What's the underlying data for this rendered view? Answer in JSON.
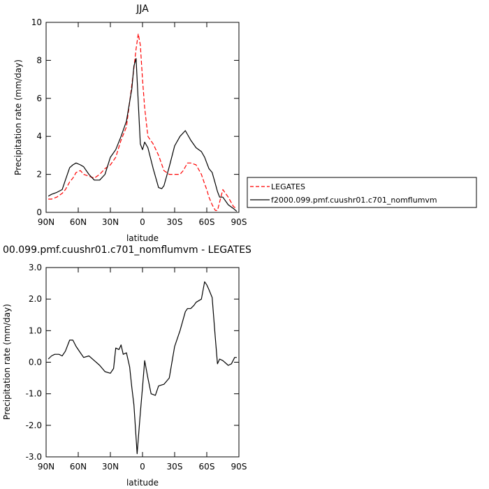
{
  "chart_data": [
    {
      "type": "line",
      "title": "JJA",
      "xlabel": "latitude",
      "ylabel": "Precipitation rate (mm/day)",
      "xlim": [
        90,
        -90
      ],
      "ylim": [
        0,
        10
      ],
      "xticks": [
        {
          "value": 90,
          "label": "90N"
        },
        {
          "value": 60,
          "label": "60N"
        },
        {
          "value": 30,
          "label": "30N"
        },
        {
          "value": 0,
          "label": "0"
        },
        {
          "value": -30,
          "label": "30S"
        },
        {
          "value": -60,
          "label": "60S"
        },
        {
          "value": -90,
          "label": "90S"
        }
      ],
      "yticks": [
        {
          "value": 0,
          "label": "0"
        },
        {
          "value": 2,
          "label": "2"
        },
        {
          "value": 4,
          "label": "4"
        },
        {
          "value": 6,
          "label": "6"
        },
        {
          "value": 8,
          "label": "8"
        },
        {
          "value": 10,
          "label": "10"
        }
      ],
      "legend_placement": "right",
      "series": [
        {
          "name": "LEGATES",
          "color": "#ff0000",
          "style": "dashed",
          "x": [
            88,
            85,
            80,
            75,
            72,
            68,
            65,
            62,
            58,
            55,
            50,
            45,
            40,
            35,
            30,
            25,
            20,
            15,
            10,
            8,
            6,
            4,
            2,
            0,
            -2,
            -5,
            -10,
            -15,
            -20,
            -25,
            -30,
            -35,
            -38,
            -42,
            -45,
            -50,
            -55,
            -58,
            -60,
            -62,
            -65,
            -68,
            -70,
            -75,
            -80,
            -85,
            -88
          ],
          "y": [
            0.7,
            0.7,
            0.8,
            1.0,
            1.2,
            1.6,
            1.8,
            2.1,
            2.2,
            2.0,
            1.9,
            1.8,
            2.0,
            2.3,
            2.5,
            2.9,
            3.8,
            4.5,
            6.7,
            7.6,
            8.6,
            9.4,
            8.8,
            7.0,
            5.5,
            4.0,
            3.6,
            3.0,
            2.2,
            2.0,
            2.0,
            2.0,
            2.2,
            2.6,
            2.6,
            2.5,
            2.0,
            1.5,
            1.2,
            0.8,
            0.4,
            0.1,
            0.1,
            1.2,
            0.8,
            0.3,
            0.2
          ]
        },
        {
          "name": "f2000.099.pmf.cuushr01.c701_nomflumvm",
          "color": "#000000",
          "style": "solid",
          "x": [
            88,
            85,
            80,
            75,
            72,
            68,
            65,
            62,
            58,
            55,
            50,
            45,
            40,
            35,
            30,
            25,
            20,
            15,
            10,
            8,
            6,
            4,
            2,
            0,
            -2,
            -5,
            -10,
            -15,
            -18,
            -20,
            -25,
            -30,
            -35,
            -40,
            -42,
            -45,
            -50,
            -55,
            -58,
            -60,
            -62,
            -65,
            -68,
            -70,
            -72,
            -75,
            -80,
            -85,
            -88
          ],
          "y": [
            0.85,
            0.95,
            1.05,
            1.2,
            1.7,
            2.35,
            2.5,
            2.6,
            2.5,
            2.4,
            2.0,
            1.7,
            1.7,
            2.0,
            2.9,
            3.3,
            4.0,
            4.8,
            6.5,
            7.7,
            8.1,
            5.8,
            3.6,
            3.3,
            3.7,
            3.4,
            2.3,
            1.3,
            1.25,
            1.4,
            2.4,
            3.5,
            4.0,
            4.3,
            4.1,
            3.8,
            3.4,
            3.2,
            2.9,
            2.6,
            2.3,
            2.1,
            1.5,
            1.1,
            0.8,
            0.8,
            0.4,
            0.2,
            0.05
          ]
        }
      ]
    },
    {
      "type": "line",
      "title": "00.099.pmf.cuushr01.c701_nomflumvm - LEGATES",
      "xlabel": "latitude",
      "ylabel": "Precipitation rate (mm/day)",
      "xlim": [
        90,
        -90
      ],
      "ylim": [
        -3,
        3
      ],
      "xticks": [
        {
          "value": 90,
          "label": "90N"
        },
        {
          "value": 60,
          "label": "60N"
        },
        {
          "value": 30,
          "label": "30N"
        },
        {
          "value": 0,
          "label": "0"
        },
        {
          "value": -30,
          "label": "30S"
        },
        {
          "value": -60,
          "label": "60S"
        },
        {
          "value": -90,
          "label": "90S"
        }
      ],
      "yticks": [
        {
          "value": -3,
          "label": "-3.0"
        },
        {
          "value": -2,
          "label": "-2.0"
        },
        {
          "value": -1,
          "label": "-1.0"
        },
        {
          "value": 0,
          "label": "0.0"
        },
        {
          "value": 1,
          "label": "1.0"
        },
        {
          "value": 2,
          "label": "2.0"
        },
        {
          "value": 3,
          "label": "3.0"
        }
      ],
      "series": [
        {
          "color": "#000000",
          "style": "solid",
          "x": [
            88,
            85,
            82,
            78,
            75,
            72,
            68,
            65,
            62,
            58,
            55,
            50,
            45,
            40,
            35,
            30,
            27,
            25,
            22,
            20,
            18,
            15,
            12,
            10,
            8,
            5,
            2,
            0,
            -2,
            -5,
            -8,
            -12,
            -15,
            -20,
            -25,
            -28,
            -30,
            -35,
            -40,
            -42,
            -45,
            -48,
            -50,
            -55,
            -58,
            -60,
            -62,
            -65,
            -68,
            -70,
            -72,
            -75,
            -80,
            -83,
            -86,
            -88
          ],
          "y": [
            0.1,
            0.2,
            0.25,
            0.25,
            0.2,
            0.35,
            0.7,
            0.7,
            0.5,
            0.3,
            0.15,
            0.2,
            0.05,
            -0.1,
            -0.3,
            -0.35,
            -0.2,
            0.45,
            0.4,
            0.55,
            0.25,
            0.3,
            -0.15,
            -0.8,
            -1.35,
            -2.9,
            -1.6,
            -0.8,
            0.05,
            -0.5,
            -1.0,
            -1.05,
            -0.75,
            -0.7,
            -0.5,
            0.1,
            0.5,
            1.0,
            1.6,
            1.7,
            1.7,
            1.8,
            1.9,
            2.0,
            2.55,
            2.45,
            2.3,
            2.05,
            0.75,
            -0.05,
            0.1,
            0.05,
            -0.1,
            -0.05,
            0.15,
            0.15
          ]
        }
      ]
    }
  ]
}
